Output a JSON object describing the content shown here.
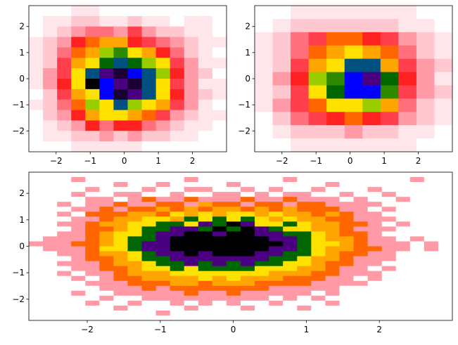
{
  "chart_data": [
    {
      "type": "heatmap",
      "title": "",
      "xlabel": "",
      "ylabel": "",
      "xlim": [
        -2.8,
        3.0
      ],
      "ylim": [
        -2.8,
        2.8
      ],
      "x_ticks": [
        -2,
        -1,
        0,
        1,
        2
      ],
      "y_ticks": [
        -2,
        -1,
        0,
        1,
        2
      ],
      "x_tick_labels": [
        "−2",
        "−1",
        "0",
        "1",
        "2"
      ],
      "y_tick_labels": [
        "−2",
        "−1",
        "0",
        "1",
        "2"
      ],
      "grid": false,
      "bins_x": 14,
      "bins_y": 14,
      "colormap": [
        "#ffffff",
        "#ffe6ea",
        "#ffc8d0",
        "#ff9aa6",
        "#ff6f7c",
        "#ff3f4c",
        "#ff2020",
        "#ff6600",
        "#ffa500",
        "#ffe100",
        "#9acd00",
        "#2e8b00",
        "#006600",
        "#005080",
        "#0000ff",
        "#4b0082",
        "#1a0033",
        "#000000"
      ],
      "counts": [
        [
          0,
          0,
          0,
          1,
          1,
          0,
          0,
          0,
          0,
          0,
          0,
          0,
          0,
          0
        ],
        [
          0,
          1,
          1,
          2,
          2,
          1,
          1,
          2,
          1,
          1,
          0,
          1,
          1,
          0
        ],
        [
          0,
          1,
          2,
          3,
          4,
          4,
          3,
          5,
          3,
          2,
          2,
          1,
          1,
          0
        ],
        [
          1,
          2,
          3,
          6,
          7,
          8,
          8,
          6,
          5,
          4,
          3,
          2,
          1,
          1
        ],
        [
          1,
          2,
          4,
          7,
          8,
          10,
          11,
          9,
          8,
          6,
          4,
          2,
          1,
          0
        ],
        [
          1,
          2,
          5,
          8,
          9,
          12,
          13,
          12,
          10,
          9,
          5,
          3,
          1,
          1
        ],
        [
          1,
          3,
          5,
          9,
          13,
          15,
          16,
          14,
          13,
          10,
          6,
          3,
          2,
          0
        ],
        [
          1,
          3,
          6,
          9,
          17,
          14,
          15,
          16,
          13,
          9,
          5,
          3,
          1,
          1
        ],
        [
          0,
          2,
          5,
          8,
          9,
          14,
          16,
          15,
          13,
          9,
          6,
          3,
          2,
          1
        ],
        [
          1,
          2,
          4,
          7,
          10,
          9,
          13,
          10,
          9,
          8,
          5,
          3,
          1,
          0
        ],
        [
          0,
          2,
          3,
          6,
          8,
          9,
          9,
          8,
          7,
          5,
          3,
          2,
          1,
          1
        ],
        [
          0,
          1,
          2,
          3,
          6,
          4,
          6,
          6,
          4,
          3,
          2,
          1,
          1,
          0
        ],
        [
          0,
          1,
          1,
          2,
          2,
          3,
          2,
          3,
          2,
          2,
          1,
          1,
          0,
          0
        ],
        [
          0,
          0,
          0,
          1,
          1,
          1,
          1,
          1,
          0,
          0,
          0,
          0,
          0,
          0
        ]
      ]
    },
    {
      "type": "heatmap",
      "title": "",
      "xlabel": "",
      "ylabel": "",
      "xlim": [
        -2.8,
        3.0
      ],
      "ylim": [
        -2.8,
        2.8
      ],
      "x_ticks": [
        -2,
        -1,
        0,
        1,
        2
      ],
      "y_ticks": [
        -2,
        -1,
        0,
        1,
        2
      ],
      "x_tick_labels": [
        "−2",
        "−1",
        "0",
        "1",
        "2"
      ],
      "y_tick_labels": [
        "−2",
        "−1",
        "0",
        "1",
        "2"
      ],
      "grid": false,
      "bins_x": 11,
      "bins_y": 11,
      "colormap": [
        "#ffffff",
        "#ffe6ea",
        "#ffc8d0",
        "#ff9aa6",
        "#ff6f7c",
        "#ff3f4c",
        "#ff2020",
        "#ff6600",
        "#ffa500",
        "#ffe100",
        "#9acd00",
        "#2e8b00",
        "#006600",
        "#005080",
        "#0000ff",
        "#4b0082",
        "#1a0033",
        "#000000"
      ],
      "counts": [
        [
          0,
          0,
          1,
          1,
          1,
          1,
          1,
          1,
          1,
          0,
          0
        ],
        [
          0,
          1,
          2,
          2,
          2,
          2,
          2,
          2,
          1,
          1,
          0
        ],
        [
          1,
          2,
          4,
          5,
          7,
          7,
          6,
          5,
          3,
          2,
          1
        ],
        [
          1,
          2,
          4,
          7,
          8,
          9,
          8,
          7,
          4,
          2,
          1
        ],
        [
          1,
          2,
          5,
          8,
          9,
          13,
          13,
          8,
          5,
          3,
          2
        ],
        [
          1,
          3,
          6,
          10,
          11,
          14,
          15,
          12,
          6,
          3,
          1
        ],
        [
          1,
          2,
          5,
          9,
          12,
          14,
          14,
          11,
          5,
          3,
          2
        ],
        [
          1,
          3,
          5,
          7,
          9,
          9,
          10,
          8,
          4,
          2,
          1
        ],
        [
          0,
          2,
          4,
          5,
          6,
          7,
          6,
          5,
          3,
          2,
          1
        ],
        [
          0,
          1,
          2,
          2,
          2,
          3,
          2,
          2,
          1,
          1,
          0
        ],
        [
          0,
          0,
          1,
          1,
          1,
          1,
          1,
          1,
          1,
          0,
          0
        ]
      ]
    },
    {
      "type": "heatmap",
      "title": "",
      "xlabel": "",
      "ylabel": "",
      "xlim": [
        -2.8,
        3.0
      ],
      "ylim": [
        -2.8,
        2.8
      ],
      "x_ticks": [
        -2,
        -1,
        0,
        1,
        2
      ],
      "y_ticks": [
        -2,
        -1,
        0,
        1,
        2
      ],
      "x_tick_labels": [
        "−2",
        "−1",
        "0",
        "1",
        "2"
      ],
      "y_tick_labels": [
        "−2",
        "−1",
        "0",
        "1",
        "2"
      ],
      "grid": false,
      "bins_x": 30,
      "bins_y": 30,
      "colormap": [
        "#ffffff",
        "#ff9aa6",
        "#ff6600",
        "#ffa500",
        "#ffe100",
        "#006600",
        "#4b0082",
        "#000000"
      ],
      "counts": [
        [
          0,
          0,
          0,
          0,
          0,
          0,
          0,
          0,
          0,
          0,
          0,
          0,
          0,
          0,
          0,
          0,
          0,
          0,
          0,
          0,
          0,
          0,
          0,
          0,
          0,
          0,
          0,
          0,
          0,
          0
        ],
        [
          0,
          0,
          0,
          1,
          0,
          0,
          0,
          0,
          0,
          0,
          0,
          1,
          0,
          0,
          0,
          0,
          0,
          0,
          1,
          0,
          0,
          0,
          0,
          0,
          0,
          0,
          0,
          1,
          0,
          0
        ],
        [
          0,
          0,
          0,
          0,
          0,
          0,
          1,
          0,
          0,
          1,
          0,
          0,
          0,
          0,
          1,
          0,
          0,
          0,
          0,
          0,
          0,
          1,
          0,
          0,
          0,
          0,
          0,
          0,
          0,
          0
        ],
        [
          0,
          0,
          0,
          0,
          1,
          0,
          0,
          0,
          1,
          0,
          0,
          1,
          1,
          0,
          0,
          1,
          0,
          1,
          0,
          0,
          1,
          0,
          0,
          0,
          1,
          0,
          0,
          0,
          0,
          0
        ],
        [
          0,
          0,
          0,
          1,
          0,
          0,
          1,
          1,
          0,
          0,
          1,
          0,
          0,
          1,
          1,
          0,
          1,
          0,
          1,
          1,
          0,
          0,
          1,
          0,
          0,
          1,
          0,
          0,
          0,
          0
        ],
        [
          0,
          0,
          0,
          0,
          1,
          1,
          0,
          1,
          2,
          1,
          1,
          2,
          1,
          1,
          1,
          2,
          1,
          1,
          2,
          1,
          1,
          1,
          0,
          1,
          0,
          0,
          1,
          0,
          0,
          0
        ],
        [
          0,
          0,
          1,
          0,
          1,
          1,
          2,
          1,
          1,
          2,
          2,
          1,
          3,
          2,
          2,
          1,
          2,
          2,
          1,
          2,
          2,
          1,
          1,
          1,
          1,
          0,
          0,
          0,
          0,
          0
        ],
        [
          0,
          0,
          0,
          1,
          1,
          2,
          1,
          2,
          2,
          3,
          2,
          3,
          2,
          3,
          3,
          2,
          3,
          2,
          3,
          2,
          2,
          2,
          1,
          1,
          0,
          1,
          0,
          0,
          0,
          0
        ],
        [
          0,
          0,
          1,
          0,
          2,
          2,
          2,
          3,
          3,
          2,
          4,
          3,
          4,
          3,
          4,
          4,
          3,
          4,
          3,
          3,
          2,
          3,
          2,
          1,
          1,
          0,
          0,
          0,
          0,
          0
        ],
        [
          0,
          0,
          0,
          1,
          1,
          2,
          3,
          3,
          4,
          4,
          3,
          5,
          4,
          5,
          4,
          5,
          4,
          3,
          4,
          3,
          3,
          2,
          2,
          1,
          1,
          1,
          0,
          0,
          0,
          0
        ],
        [
          0,
          0,
          1,
          1,
          2,
          3,
          3,
          4,
          4,
          5,
          5,
          4,
          6,
          5,
          7,
          6,
          4,
          4,
          5,
          4,
          3,
          3,
          2,
          2,
          1,
          0,
          1,
          0,
          0,
          0
        ],
        [
          0,
          0,
          0,
          1,
          2,
          2,
          3,
          4,
          5,
          5,
          6,
          6,
          5,
          7,
          5,
          7,
          6,
          5,
          4,
          4,
          3,
          3,
          2,
          1,
          1,
          1,
          0,
          0,
          0,
          0
        ],
        [
          0,
          0,
          1,
          1,
          2,
          3,
          4,
          4,
          5,
          6,
          6,
          7,
          7,
          6,
          7,
          7,
          6,
          6,
          5,
          5,
          4,
          3,
          2,
          2,
          1,
          0,
          0,
          0,
          0,
          0
        ],
        [
          0,
          1,
          1,
          1,
          2,
          3,
          4,
          5,
          5,
          6,
          7,
          7,
          7,
          7,
          7,
          7,
          7,
          6,
          6,
          5,
          4,
          3,
          3,
          2,
          1,
          1,
          0,
          1,
          0,
          0
        ],
        [
          1,
          1,
          1,
          2,
          2,
          3,
          4,
          5,
          6,
          6,
          7,
          7,
          7,
          7,
          7,
          7,
          7,
          7,
          6,
          5,
          4,
          4,
          3,
          2,
          1,
          1,
          1,
          0,
          1,
          0
        ],
        [
          0,
          1,
          1,
          1,
          2,
          4,
          4,
          5,
          6,
          6,
          7,
          7,
          7,
          7,
          7,
          7,
          7,
          6,
          6,
          5,
          4,
          3,
          3,
          2,
          2,
          1,
          1,
          0,
          1,
          0
        ],
        [
          0,
          0,
          1,
          1,
          2,
          3,
          3,
          4,
          5,
          6,
          6,
          7,
          6,
          7,
          7,
          7,
          6,
          6,
          5,
          5,
          4,
          3,
          2,
          2,
          1,
          1,
          0,
          0,
          0,
          0
        ],
        [
          0,
          0,
          0,
          1,
          2,
          2,
          3,
          4,
          5,
          5,
          6,
          6,
          6,
          6,
          6,
          6,
          6,
          5,
          5,
          4,
          3,
          3,
          2,
          1,
          1,
          1,
          0,
          0,
          0,
          0
        ],
        [
          0,
          0,
          1,
          1,
          1,
          2,
          3,
          3,
          4,
          5,
          5,
          6,
          5,
          6,
          5,
          6,
          5,
          5,
          4,
          4,
          3,
          2,
          2,
          1,
          1,
          0,
          0,
          0,
          0,
          0
        ],
        [
          0,
          0,
          0,
          1,
          1,
          2,
          2,
          3,
          4,
          4,
          5,
          4,
          5,
          5,
          5,
          5,
          4,
          4,
          4,
          3,
          3,
          2,
          1,
          1,
          0,
          1,
          0,
          0,
          0,
          0
        ],
        [
          0,
          0,
          1,
          0,
          1,
          1,
          2,
          3,
          3,
          3,
          4,
          4,
          4,
          4,
          4,
          4,
          4,
          3,
          3,
          3,
          2,
          2,
          1,
          1,
          1,
          0,
          0,
          0,
          0,
          0
        ],
        [
          0,
          0,
          0,
          1,
          0,
          1,
          2,
          2,
          3,
          3,
          3,
          3,
          4,
          3,
          4,
          3,
          3,
          3,
          2,
          2,
          2,
          1,
          1,
          0,
          1,
          0,
          0,
          0,
          0,
          0
        ],
        [
          0,
          0,
          0,
          0,
          1,
          1,
          1,
          2,
          2,
          2,
          3,
          3,
          2,
          3,
          3,
          3,
          2,
          2,
          2,
          2,
          1,
          1,
          1,
          1,
          0,
          0,
          0,
          0,
          0,
          0
        ],
        [
          0,
          0,
          0,
          0,
          0,
          1,
          1,
          1,
          2,
          1,
          2,
          2,
          2,
          2,
          2,
          2,
          2,
          1,
          1,
          1,
          1,
          1,
          0,
          0,
          0,
          0,
          0,
          0,
          0,
          0
        ],
        [
          0,
          0,
          0,
          1,
          0,
          0,
          1,
          1,
          1,
          1,
          1,
          2,
          1,
          1,
          2,
          1,
          1,
          1,
          1,
          1,
          0,
          1,
          0,
          0,
          0,
          0,
          0,
          0,
          0,
          0
        ],
        [
          0,
          0,
          0,
          0,
          0,
          1,
          0,
          0,
          1,
          1,
          1,
          1,
          1,
          1,
          1,
          1,
          1,
          0,
          1,
          0,
          1,
          0,
          0,
          0,
          0,
          0,
          0,
          0,
          0,
          0
        ],
        [
          0,
          0,
          0,
          0,
          1,
          0,
          0,
          1,
          0,
          0,
          1,
          0,
          1,
          0,
          1,
          0,
          0,
          1,
          0,
          0,
          0,
          1,
          0,
          0,
          0,
          0,
          0,
          0,
          0,
          0
        ],
        [
          0,
          0,
          0,
          0,
          0,
          0,
          1,
          0,
          0,
          0,
          0,
          1,
          0,
          0,
          0,
          1,
          0,
          0,
          0,
          1,
          0,
          0,
          0,
          0,
          0,
          0,
          0,
          0,
          0,
          0
        ],
        [
          0,
          0,
          0,
          0,
          0,
          0,
          0,
          0,
          0,
          1,
          0,
          0,
          0,
          0,
          0,
          0,
          0,
          0,
          0,
          0,
          0,
          0,
          0,
          0,
          0,
          0,
          0,
          0,
          0,
          0
        ],
        [
          0,
          0,
          0,
          0,
          0,
          0,
          0,
          0,
          0,
          0,
          0,
          0,
          0,
          0,
          0,
          0,
          0,
          0,
          0,
          0,
          0,
          0,
          0,
          0,
          0,
          0,
          0,
          0,
          0,
          0
        ]
      ]
    }
  ]
}
